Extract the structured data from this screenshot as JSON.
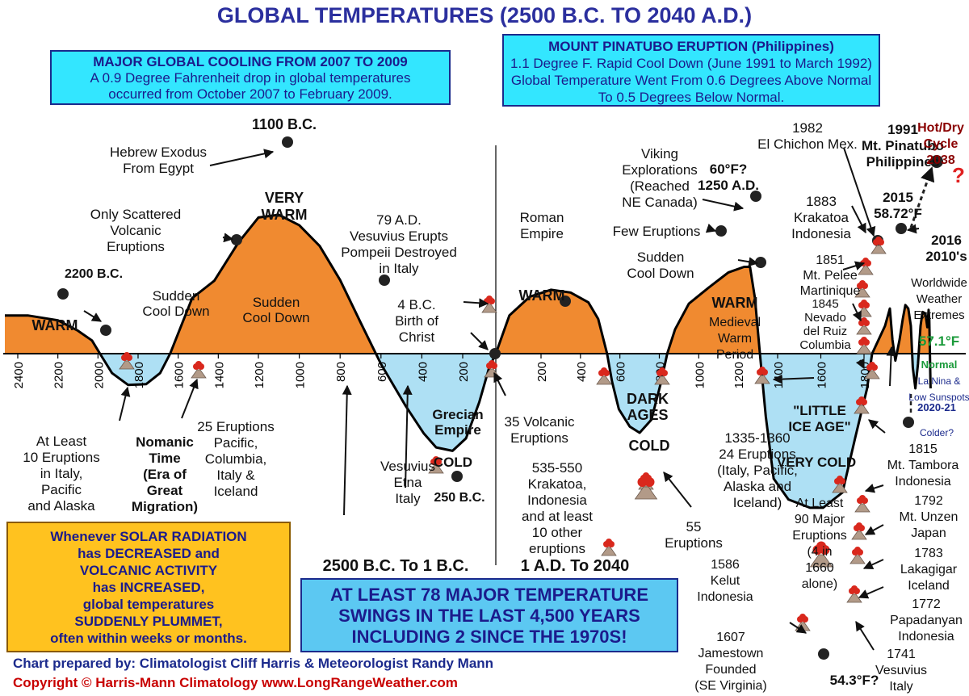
{
  "title": "GLOBAL TEMPERATURES (2500 B.C. TO 2040 A.D.)",
  "colors": {
    "warm": "#f08a30",
    "cold": "#aee0f4",
    "title": "#2b2f9e",
    "volcano": "#d9281d",
    "mountain": "#b29a88"
  },
  "boxes": {
    "cooling": {
      "heading": "MAJOR GLOBAL COOLING FROM 2007 TO 2009",
      "lines": [
        "A 0.9 Degree Fahrenheit drop in global temperatures",
        "occurred from October 2007 to February 2009."
      ]
    },
    "pinatubo": {
      "heading": "MOUNT PINATUBO ERUPTION (Philippines)",
      "lines": [
        "1.1 Degree F. Rapid Cool Down (June 1991 to March 1992)",
        "Global Temperature Went From 0.6 Degrees Above Normal",
        "To 0.5 Degrees Below Normal."
      ]
    },
    "solar": {
      "lines": [
        "Whenever SOLAR RADIATION",
        "has DECREASED and",
        "VOLCANIC ACTIVITY",
        "has INCREASED,",
        "global temperatures",
        "SUDDENLY PLUMMET,",
        "often within weeks or months."
      ]
    },
    "swings": {
      "lines": [
        "AT LEAST 78 MAJOR TEMPERATURE",
        "SWINGS IN THE LAST 4,500 YEARS",
        "INCLUDING 2 SINCE THE 1970S!"
      ]
    }
  },
  "chart_data": {
    "type": "area",
    "title": "GLOBAL TEMPERATURES (2500 B.C. TO 2040 A.D.)",
    "baseline_label": "57.1°F",
    "baseline_sublabel": "Normal",
    "era_labels": [
      "2500 B.C. To 1 B.C.",
      "1 A.D. To 2040"
    ],
    "x_ticks_bc": [
      "2400",
      "2200",
      "2000",
      "1800",
      "1600",
      "1400",
      "1200",
      "1000",
      "800",
      "600",
      "400",
      "200"
    ],
    "x_ticks_ad": [
      "200",
      "400",
      "600",
      "800",
      "1000",
      "1200",
      "1400",
      "1600",
      "1800"
    ],
    "x_ticks_bc_values": [
      -2400,
      -2200,
      -2000,
      -1800,
      -1600,
      -1400,
      -1200,
      -1000,
      -800,
      -600,
      -400,
      -200
    ],
    "x_ticks_ad_values": [
      200,
      400,
      600,
      800,
      1000,
      1200,
      1400,
      1600,
      1800
    ],
    "series": [
      {
        "points": [
          [
            -2500,
            0.55
          ],
          [
            -2350,
            0.55
          ],
          [
            -2200,
            0.48
          ],
          [
            -2100,
            0.33
          ],
          [
            -2030,
            0.19
          ],
          [
            -1990,
            0
          ],
          [
            -1930,
            -0.28
          ],
          [
            -1850,
            -0.45
          ],
          [
            -1760,
            -0.44
          ],
          [
            -1690,
            -0.28
          ],
          [
            -1640,
            0
          ],
          [
            -1530,
            0.8
          ],
          [
            -1420,
            1.05
          ],
          [
            -1300,
            1.6
          ],
          [
            -1200,
            1.96
          ],
          [
            -1100,
            2.0
          ],
          [
            -1000,
            1.85
          ],
          [
            -900,
            1.55
          ],
          [
            -800,
            1.06
          ],
          [
            -700,
            0.45
          ],
          [
            -600,
            -0.15
          ],
          [
            -480,
            -0.75
          ],
          [
            -390,
            -1.15
          ],
          [
            -330,
            -1.35
          ],
          [
            -250,
            -1.4
          ],
          [
            -180,
            -1.22
          ],
          [
            -100,
            -0.7
          ],
          [
            -40,
            -0.2
          ],
          [
            0,
            0
          ],
          [
            60,
            0.55
          ],
          [
            150,
            0.82
          ],
          [
            250,
            0.92
          ],
          [
            350,
            0.88
          ],
          [
            440,
            0.74
          ],
          [
            490,
            0.5
          ],
          [
            535,
            0
          ],
          [
            560,
            -0.4
          ],
          [
            595,
            -0.8
          ],
          [
            650,
            -1.05
          ],
          [
            700,
            -1.14
          ],
          [
            760,
            -0.95
          ],
          [
            810,
            -0.4
          ],
          [
            840,
            0
          ],
          [
            880,
            0.35
          ],
          [
            950,
            0.72
          ],
          [
            1050,
            0.95
          ],
          [
            1150,
            1.17
          ],
          [
            1230,
            1.25
          ],
          [
            1260,
            1.25
          ],
          [
            1285,
            0.8
          ],
          [
            1310,
            0.01
          ],
          [
            1340,
            -0.9
          ],
          [
            1380,
            -1.8
          ],
          [
            1450,
            -2.1
          ],
          [
            1550,
            -2.22
          ],
          [
            1610,
            -2.22
          ],
          [
            1700,
            -2.0
          ],
          [
            1760,
            -1.2
          ],
          [
            1815,
            -0.5
          ],
          [
            1840,
            0
          ],
          [
            1880,
            0.4
          ],
          [
            1895,
            0.65
          ],
          [
            1903,
            0.2
          ],
          [
            1912,
            -0.1
          ],
          [
            1925,
            0.2
          ],
          [
            1935,
            0.5
          ],
          [
            1943,
            0.7
          ],
          [
            1952,
            0.65
          ],
          [
            1960,
            0.4
          ],
          [
            1966,
            -0.2
          ],
          [
            1974,
            -0.5
          ],
          [
            1982,
            -0.15
          ],
          [
            1990,
            0.4
          ],
          [
            1996,
            0.6
          ],
          [
            2005,
            0.58
          ],
          [
            2011,
            0.38
          ],
          [
            2015,
            0.63
          ],
          [
            2017,
            0.5
          ],
          [
            2019,
            0.0
          ],
          [
            2021,
            -0.5
          ]
        ]
      }
    ],
    "annotations": [
      {
        "text": [
          "2200 B.C."
        ],
        "bold": true
      },
      {
        "text": [
          "WARM"
        ],
        "bold": true
      },
      {
        "text": [
          "Sudden",
          "Cool Down"
        ]
      },
      {
        "text": [
          "1100 B.C."
        ],
        "bold": true
      },
      {
        "text": [
          "Hebrew Exodus",
          "From Egypt"
        ]
      },
      {
        "text": [
          "VERY",
          "WARM"
        ],
        "bold": true
      },
      {
        "text": [
          "Only Scattered",
          "Volcanic",
          "Eruptions"
        ]
      },
      {
        "text": [
          "Sudden",
          "Cool Down"
        ]
      },
      {
        "text": [
          "At Least",
          "10 Eruptions",
          "in Italy,",
          "Pacific",
          "and Alaska"
        ]
      },
      {
        "text": [
          "Nomanic",
          "Time",
          "(Era of",
          "Great",
          "Migration)"
        ],
        "bold": true
      },
      {
        "text": [
          "25 Eruptions",
          "Pacific,",
          "Columbia,",
          "Italy &",
          "Iceland"
        ]
      },
      {
        "text": [
          "79 A.D.",
          "Vesuvius Erupts",
          "Pompeii Destroyed",
          "in Italy"
        ]
      },
      {
        "text": [
          "4 B.C.",
          "Birth of",
          "Christ"
        ]
      },
      {
        "text": [
          "Grecian",
          "Empire"
        ],
        "bold": true
      },
      {
        "text": [
          "COLD"
        ],
        "bold": true
      },
      {
        "text": [
          "Vesuvius",
          "Etna",
          "Italy"
        ]
      },
      {
        "text": [
          "250 B.C."
        ],
        "bold": true
      },
      {
        "text": [
          "Roman",
          "Empire"
        ]
      },
      {
        "text": [
          "WARM"
        ],
        "bold": true
      },
      {
        "text": [
          "35 Volcanic",
          "Eruptions"
        ]
      },
      {
        "text": [
          "535-550",
          "Krakatoa,",
          "Indonesia",
          "and at least",
          "10 other",
          "eruptions"
        ]
      },
      {
        "text": [
          "DARK",
          "AGES"
        ],
        "bold": true
      },
      {
        "text": [
          "COLD"
        ],
        "bold": true
      },
      {
        "text": [
          "55",
          "Eruptions"
        ]
      },
      {
        "text": [
          "Viking",
          "Explorations",
          "(Reached",
          "NE Canada)"
        ]
      },
      {
        "text": [
          "60°F?",
          "1250 A.D."
        ],
        "bold": true
      },
      {
        "text": [
          "Few Eruptions"
        ]
      },
      {
        "text": [
          "Sudden",
          "Cool Down"
        ]
      },
      {
        "text": [
          "WARM"
        ],
        "bold": true
      },
      {
        "text": [
          "Medieval",
          "Warm",
          "Period"
        ]
      },
      {
        "text": [
          "1335-1360",
          "24 Eruptions",
          "(Italy, Pacific,",
          "Alaska and",
          "Iceland)"
        ]
      },
      {
        "text": [
          "\"LITTLE",
          "ICE AGE\""
        ],
        "bold": true
      },
      {
        "text": [
          "VERY COLD"
        ],
        "bold": true
      },
      {
        "text": [
          "At Least",
          "90 Major",
          "Eruptions",
          "(4 in",
          "1660",
          "alone)"
        ]
      },
      {
        "text": [
          "1586",
          "Kelut",
          "Indonesia"
        ]
      },
      {
        "text": [
          "1607",
          "Jamestown",
          "Founded",
          "(SE Virginia)"
        ]
      },
      {
        "text": [
          "54.3°F?"
        ],
        "bold": true
      },
      {
        "text": [
          "1982",
          "El Chichon Mex."
        ]
      },
      {
        "text": [
          "1991",
          "Mt. Pinatubo",
          "Philippines"
        ],
        "bold": true
      },
      {
        "text": [
          "1883",
          "Krakatoa",
          "Indonesia"
        ]
      },
      {
        "text": [
          "1851",
          "Mt. Pelee",
          "Martinique"
        ]
      },
      {
        "text": [
          "1845",
          "Nevado",
          "del Ruiz",
          "Columbia"
        ]
      },
      {
        "text": [
          "2015",
          "58.72°F"
        ],
        "bold": true
      },
      {
        "text": [
          "Hot/Dry",
          "Cycle",
          "2038"
        ],
        "bold": true
      },
      {
        "text": [
          "?"
        ],
        "bold": true
      },
      {
        "text": [
          "2016",
          "2010's"
        ],
        "bold": true
      },
      {
        "text": [
          "Worldwide",
          "Weather",
          "Extremes"
        ]
      },
      {
        "text": [
          "La Nina &",
          "Low Sunspots"
        ]
      },
      {
        "text": [
          "2020-21"
        ],
        "bold": true
      },
      {
        "text": [
          "Colder?"
        ]
      },
      {
        "text": [
          "1815",
          "Mt. Tambora",
          "Indonesia"
        ]
      },
      {
        "text": [
          "1792",
          "Mt. Unzen",
          "Japan"
        ]
      },
      {
        "text": [
          "1783",
          "Lakagigar",
          "Iceland"
        ]
      },
      {
        "text": [
          "1772",
          "Papadanyan",
          "Indonesia"
        ]
      },
      {
        "text": [
          "1741",
          "Vesuvius",
          "Italy"
        ]
      }
    ]
  },
  "credits": {
    "line1": "Chart prepared by: Climatologist Cliff Harris & Meteorologist Randy Mann",
    "line2": "Copyright © Harris-Mann Climatology   www.LongRangeWeather.com"
  }
}
